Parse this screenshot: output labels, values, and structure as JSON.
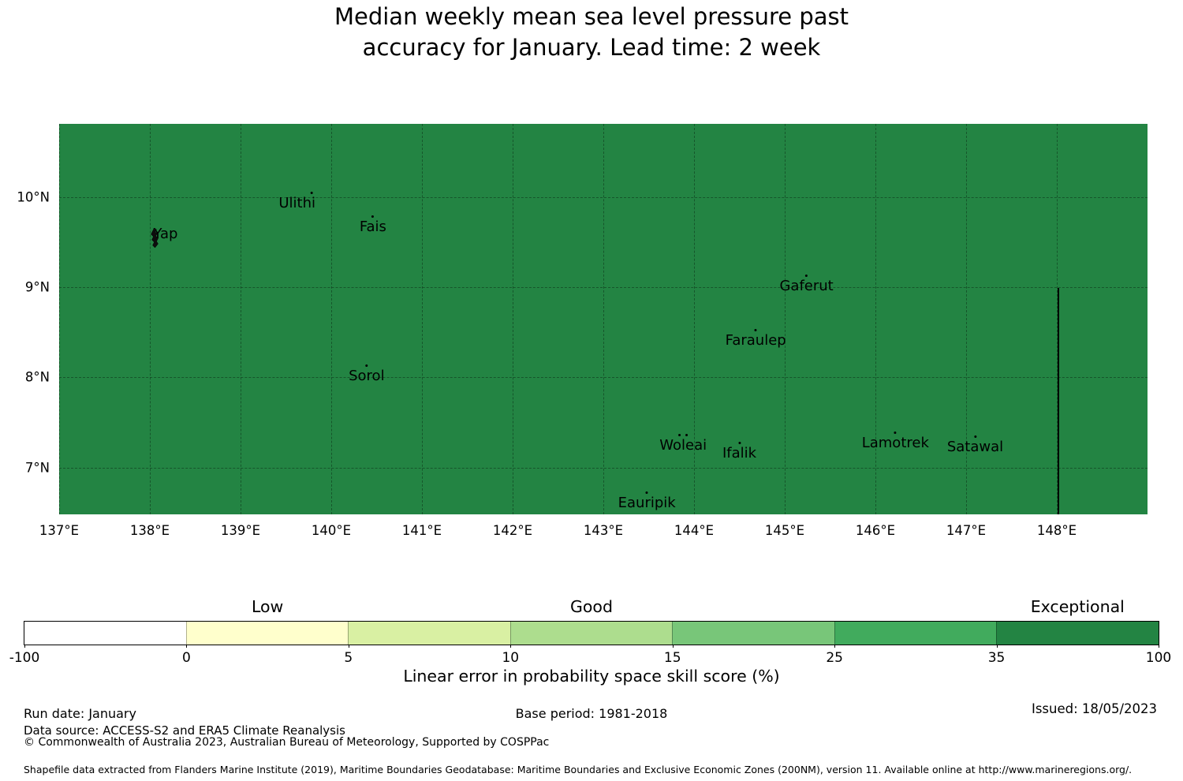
{
  "title": {
    "line1": "Median weekly mean sea level pressure past",
    "line2": "accuracy for January. Lead time: 2 week"
  },
  "map": {
    "fill_color": "#238443",
    "extent": {
      "lon_min": 137,
      "lon_max": 149,
      "lat_min": 6.48,
      "lat_max": 10.81
    },
    "x_ticks": [
      {
        "lon": 137,
        "label": "137°E"
      },
      {
        "lon": 138,
        "label": "138°E"
      },
      {
        "lon": 139,
        "label": "139°E"
      },
      {
        "lon": 140,
        "label": "140°E"
      },
      {
        "lon": 141,
        "label": "141°E"
      },
      {
        "lon": 142,
        "label": "142°E"
      },
      {
        "lon": 143,
        "label": "143°E"
      },
      {
        "lon": 144,
        "label": "144°E"
      },
      {
        "lon": 145,
        "label": "145°E"
      },
      {
        "lon": 146,
        "label": "146°E"
      },
      {
        "lon": 147,
        "label": "147°E"
      },
      {
        "lon": 148,
        "label": "148°E"
      }
    ],
    "y_ticks": [
      {
        "lat": 10,
        "label": "10°N"
      },
      {
        "lat": 9,
        "label": "9°N"
      },
      {
        "lat": 8,
        "label": "8°N"
      },
      {
        "lat": 7,
        "label": "7°N"
      }
    ],
    "islands": [
      {
        "name": "Yap",
        "lon": 138.13,
        "lat": 9.56,
        "marker": "shape"
      },
      {
        "name": "Ulithi",
        "lon": 139.78,
        "lat": 10.03,
        "marker": "dot",
        "label_dx": -18
      },
      {
        "name": "Fais",
        "lon": 140.46,
        "lat": 9.77,
        "marker": "dot"
      },
      {
        "name": "Sorol",
        "lon": 140.39,
        "lat": 8.12,
        "marker": "dot"
      },
      {
        "name": "Gaferut",
        "lon": 145.24,
        "lat": 9.11,
        "marker": "dot"
      },
      {
        "name": "Faraulep",
        "lon": 144.68,
        "lat": 8.51,
        "marker": "dot"
      },
      {
        "name": "Woleai",
        "lon": 143.88,
        "lat": 7.35,
        "marker": "dots2"
      },
      {
        "name": "Ifalik",
        "lon": 144.5,
        "lat": 7.26,
        "marker": "dot"
      },
      {
        "name": "Lamotrek",
        "lon": 146.22,
        "lat": 7.37,
        "marker": "dot"
      },
      {
        "name": "Satawal",
        "lon": 147.1,
        "lat": 7.33,
        "marker": "dot"
      },
      {
        "name": "Eauripik",
        "lon": 143.48,
        "lat": 6.71,
        "marker": "dot"
      }
    ],
    "boundary_line": {
      "lon": 148.02,
      "lat_from": 8.99,
      "lat_to": 6.48
    }
  },
  "colorbar": {
    "segments": [
      {
        "color": "#ffffff",
        "range": "-100 to 0"
      },
      {
        "color": "#ffffcc",
        "range": "0 to 5"
      },
      {
        "color": "#d9f0a3",
        "range": "5 to 10"
      },
      {
        "color": "#addd8e",
        "range": "10 to 15"
      },
      {
        "color": "#78c679",
        "range": "15 to 25"
      },
      {
        "color": "#41ab5d",
        "range": "25 to 35"
      },
      {
        "color": "#238443",
        "range": "35 to 100"
      }
    ],
    "tick_labels": [
      "-100",
      "0",
      "5",
      "10",
      "15",
      "25",
      "35",
      "100"
    ],
    "category_labels": [
      {
        "text": "Low",
        "segment_index": 1
      },
      {
        "text": "Good",
        "segment_index": 3
      },
      {
        "text": "Exceptional",
        "segment_index": 6
      }
    ],
    "axis_label": "Linear error in probability space skill score (%)"
  },
  "footer": {
    "run_date": "Run date: January",
    "base_period": "Base period: 1981-2018",
    "issued": "Issued: 18/05/2023",
    "data_source": "Data source: ACCESS-S2 and ERA5 Climate Reanalysis",
    "copyright": "© Commonwealth of Australia 2023, Australian Bureau of Meteorology, Supported by COSPPac",
    "shapefile_note": "Shapefile data extracted from Flanders Marine Institute (2019), Maritime Boundaries Geodatabase: Maritime Boundaries and Exclusive Economic Zones (200NM), version 11. Available online at http://www.marineregions.org/."
  },
  "chart_data": {
    "type": "choropleth_map",
    "title": "Median weekly mean sea level pressure past accuracy for January. Lead time: 2 week",
    "value_label": "Linear error in probability space skill score (%)",
    "colorbar_bins": [
      -100,
      0,
      5,
      10,
      15,
      25,
      35,
      100
    ],
    "colorbar_colors": [
      "#ffffff",
      "#ffffcc",
      "#d9f0a3",
      "#addd8e",
      "#78c679",
      "#41ab5d",
      "#238443"
    ],
    "category_labels": {
      "0-5": "Low",
      "10-15": "Good",
      "35-100": "Exceptional"
    },
    "region_fill_bin": "35 to 100",
    "region_fill_color": "#238443",
    "lon_range": [
      137,
      149
    ],
    "lat_range": [
      6.48,
      10.81
    ],
    "points": [
      {
        "name": "Yap",
        "lon": 138.13,
        "lat": 9.56
      },
      {
        "name": "Ulithi",
        "lon": 139.78,
        "lat": 10.03
      },
      {
        "name": "Fais",
        "lon": 140.46,
        "lat": 9.77
      },
      {
        "name": "Sorol",
        "lon": 140.39,
        "lat": 8.12
      },
      {
        "name": "Gaferut",
        "lon": 145.24,
        "lat": 9.11
      },
      {
        "name": "Faraulep",
        "lon": 144.68,
        "lat": 8.51
      },
      {
        "name": "Woleai",
        "lon": 143.88,
        "lat": 7.35
      },
      {
        "name": "Ifalik",
        "lon": 144.5,
        "lat": 7.26
      },
      {
        "name": "Lamotrek",
        "lon": 146.22,
        "lat": 7.37
      },
      {
        "name": "Satawal",
        "lon": 147.1,
        "lat": 7.33
      },
      {
        "name": "Eauripik",
        "lon": 143.48,
        "lat": 6.71
      }
    ]
  }
}
